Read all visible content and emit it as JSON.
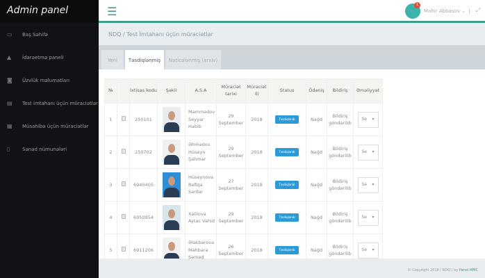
{
  "sidebar": {
    "title": "Admin panel",
    "items": [
      {
        "label": "Baş Səhifə",
        "icon": "laptop-icon"
      },
      {
        "label": "İdarəetmə paneli",
        "icon": "user-icon"
      },
      {
        "label": "Üzvlük məlumatları",
        "icon": "users-icon"
      },
      {
        "label": "Test imtahanı üçün müraciətlər",
        "icon": "list-icon"
      },
      {
        "label": "Müsahibə üçün müraciətlər",
        "icon": "chart-icon"
      },
      {
        "label": "Sənəd nümunələri",
        "icon": "file-icon"
      }
    ]
  },
  "header": {
    "user_name": "Mahir Abbasov",
    "notification_count": "1",
    "menu_icon": "hamburger-icon"
  },
  "breadcrumb": {
    "root": "NDQ",
    "separator": "/",
    "current": "Test İmtahanı üçün müraciətlər"
  },
  "tabs": [
    {
      "label": "Yeni"
    },
    {
      "label": "Təsdiqlənmiş",
      "active": true
    },
    {
      "label": "Nəticələnmiş (arxiv)"
    }
  ],
  "table": {
    "headers": [
      "№",
      "",
      "İxtisas kodu",
      "Şəkil",
      "A.S.A",
      "Müraciət tarixi",
      "Müraciət ili",
      "Status",
      "Ödəniş",
      "Bildiriş",
      "Əməliyyat"
    ],
    "rows": [
      {
        "n": "1",
        "code": "250101",
        "name": "Məmmədov Seyyar Habib",
        "date": "29 September",
        "year": "2018",
        "status": "Təsdiqlənib",
        "payment": "Nağd",
        "notice": "Bildiriş göndərilib",
        "action": "Se"
      },
      {
        "n": "2",
        "code": "250702",
        "name": "Əhmədov Hüseyn Şahmar",
        "date": "29 September",
        "year": "2018",
        "status": "Təsdiqlənib",
        "payment": "Nağd",
        "notice": "Bildiriş göndərilib",
        "action": "Se"
      },
      {
        "n": "3",
        "code": "6940405",
        "name": "Hüseynova Rafiqa Sardar",
        "date": "27 September",
        "year": "2018",
        "status": "Təsdiqlənib",
        "payment": "Nağd",
        "notice": "Bildiriş göndərilib",
        "action": "Se"
      },
      {
        "n": "4",
        "code": "6950954",
        "name": "Xəlilova Aytac Vahid",
        "date": "29 September",
        "year": "2018",
        "status": "Təsdiqlənib",
        "payment": "Nağd",
        "notice": "Bildiriş göndərilib",
        "action": "Se"
      },
      {
        "n": "5",
        "code": "6911206",
        "name": "Ələkbərova Məhbarə Səməd",
        "date": "26 September",
        "year": "2018",
        "status": "Təsdiqlənib",
        "payment": "Nağd",
        "notice": "Bildiriş göndərilib",
        "action": "Se"
      }
    ]
  },
  "footer": {
    "text": "© Copyright 2018 / NDQ / by",
    "brand": "Panel MMC"
  },
  "colors": {
    "accent": "#3d9c8c",
    "status": "#2a9bd6",
    "sidebar": "#101215"
  }
}
